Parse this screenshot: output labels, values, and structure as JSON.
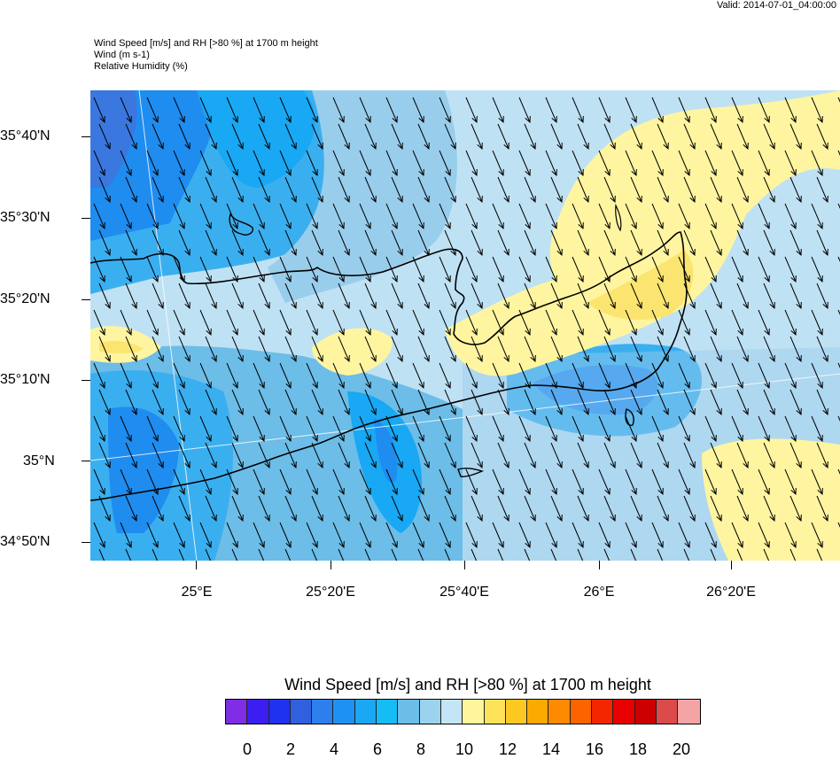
{
  "valid_time": "Valid: 2014-07-01_04:00:00",
  "header": {
    "line1": "Wind Speed [m/s] and RH [>80 %] at 1700 m height",
    "line2": "Wind   (m s-1)",
    "line3": "Relative Humidity   (%)"
  },
  "map": {
    "lat_labels": [
      "35°40'N",
      "35°30'N",
      "35°20'N",
      "35°10'N",
      "35°N",
      "34°50'N"
    ],
    "lon_labels": [
      "25°E",
      "25°20'E",
      "25°40'E",
      "26°E",
      "26°20'E"
    ],
    "wind_direction": "north-northwest (arrows pointing south-southeast)",
    "colors": {
      "background": "#bfe1f4",
      "speed_6": "#18a8f4",
      "speed_7": "#3aaff0",
      "speed_8": "#6cbde8",
      "speed_9": "#99cdec",
      "speed_5": "#1f8cf0",
      "speed_4": "#3a78e0",
      "rh_10": "#fff5a0",
      "rh_11": "#fbe570",
      "coast": "#000000",
      "arrow": "#000000"
    }
  },
  "colorbar": {
    "title": "Wind Speed [m/s] and RH [>80 %] at 1700 m height",
    "labels": [
      "0",
      "2",
      "4",
      "6",
      "8",
      "10",
      "12",
      "14",
      "16",
      "18",
      "20"
    ],
    "colors": [
      "#7f2ee6",
      "#3c1ef2",
      "#1e32f0",
      "#3060e0",
      "#2e7fee",
      "#1e92f4",
      "#1aa8f4",
      "#16bcf5",
      "#6cbde8",
      "#9bd2ee",
      "#c4e5f5",
      "#fff59c",
      "#fde25a",
      "#fdc822",
      "#fdaa00",
      "#fd8a00",
      "#fd6400",
      "#f42600",
      "#e80000",
      "#cc0000",
      "#dc4a4a",
      "#f4a4a4"
    ]
  }
}
